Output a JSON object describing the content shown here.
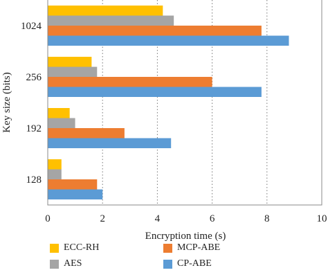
{
  "chart_data": {
    "type": "bar",
    "orientation": "horizontal",
    "title": "",
    "xlabel": "Encryption time (s)",
    "ylabel": "Key size (bits)",
    "categories": [
      "128",
      "192",
      "256",
      "1024"
    ],
    "xlim": [
      0,
      10
    ],
    "xticks": [
      "0",
      "2",
      "4",
      "6",
      "8",
      "10"
    ],
    "grid": "vertical dotted",
    "legend_position": "bottom",
    "series": [
      {
        "name": "ECC-RH",
        "color": "#FFC000",
        "values": [
          0.5,
          0.8,
          1.6,
          4.2
        ]
      },
      {
        "name": "AES",
        "color": "#A5A5A5",
        "values": [
          0.5,
          1.0,
          1.8,
          4.6
        ]
      },
      {
        "name": "MCP-ABE",
        "color": "#ED7D31",
        "values": [
          1.8,
          2.8,
          6.0,
          7.8
        ]
      },
      {
        "name": "CP-ABE",
        "color": "#5B9BD5",
        "values": [
          2.0,
          4.5,
          7.8,
          8.8
        ]
      }
    ]
  }
}
